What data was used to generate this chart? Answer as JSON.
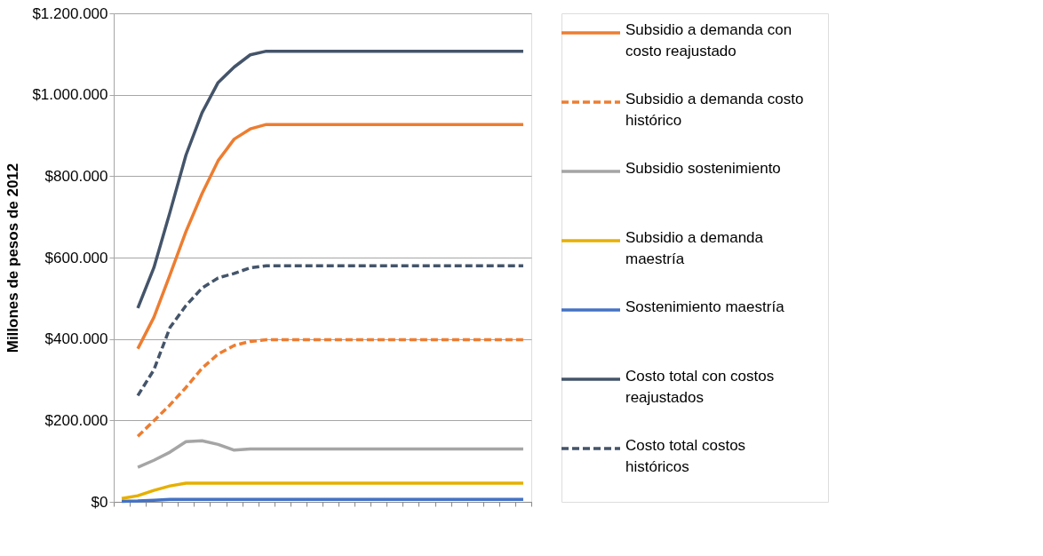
{
  "chart_data": {
    "type": "line",
    "ylabel": "Millones de pesos de 2012",
    "categories": [
      null,
      null,
      null,
      null,
      null,
      null,
      null,
      null,
      null,
      null,
      null,
      null,
      null,
      null,
      null,
      null,
      null,
      null,
      null,
      null,
      null,
      null,
      null,
      null,
      null,
      null
    ],
    "ylim": [
      0,
      1200000
    ],
    "yticks": [
      {
        "value": 0,
        "label": "$0"
      },
      {
        "value": 200000,
        "label": "$200.000"
      },
      {
        "value": 400000,
        "label": "$400.000"
      },
      {
        "value": 600000,
        "label": "$600.000"
      },
      {
        "value": 800000,
        "label": "$800.000"
      },
      {
        "value": 1000000,
        "label": "$1.000.000"
      },
      {
        "value": 1200000,
        "label": "$1.200.000"
      }
    ],
    "grid": "y",
    "legend": "right",
    "tick_labels": "y",
    "marker": "none",
    "series": [
      {
        "name": "Subsidio a demanda con costo reajustado",
        "color": "#ed7d31",
        "line_style": "solid",
        "values": [
          null,
          376000,
          453000,
          557000,
          664000,
          757000,
          838000,
          891000,
          916000,
          927000,
          927000,
          927000,
          927000,
          927000,
          927000,
          927000,
          927000,
          927000,
          927000,
          927000,
          927000,
          927000,
          927000,
          927000,
          927000,
          927000
        ]
      },
      {
        "name": "Subsidio a demanda costo histórico",
        "color": "#ed7d31",
        "line_style": "dashed",
        "values": [
          null,
          161000,
          199000,
          238000,
          281000,
          328000,
          363000,
          384000,
          394000,
          398000,
          398000,
          398000,
          398000,
          398000,
          398000,
          398000,
          398000,
          398000,
          398000,
          398000,
          398000,
          398000,
          398000,
          398000,
          398000,
          398000
        ]
      },
      {
        "name": "Subsidio sostenimiento",
        "color": "#a5a5a5",
        "line_style": "solid",
        "values": [
          null,
          85000,
          102000,
          122000,
          148000,
          150000,
          141000,
          127000,
          130000,
          130000,
          130000,
          130000,
          130000,
          130000,
          130000,
          130000,
          130000,
          130000,
          130000,
          130000,
          130000,
          130000,
          130000,
          130000,
          130000,
          130000
        ]
      },
      {
        "name": "Subsidio a demanda maestría",
        "color": "#e6b000",
        "line_style": "solid",
        "values": [
          8000,
          15000,
          28000,
          39000,
          46000,
          46000,
          46000,
          46000,
          46000,
          46000,
          46000,
          46000,
          46000,
          46000,
          46000,
          46000,
          46000,
          46000,
          46000,
          46000,
          46000,
          46000,
          46000,
          46000,
          46000,
          46000
        ]
      },
      {
        "name": "Sostenimiento maestría",
        "color": "#4472c4",
        "line_style": "solid",
        "values": [
          1000,
          2000,
          4000,
          6000,
          6000,
          6000,
          6000,
          6000,
          6000,
          6000,
          6000,
          6000,
          6000,
          6000,
          6000,
          6000,
          6000,
          6000,
          6000,
          6000,
          6000,
          6000,
          6000,
          6000,
          6000,
          6000
        ]
      },
      {
        "name": "Costo total con costos reajustados",
        "color": "#44546a",
        "line_style": "solid",
        "values": [
          null,
          476000,
          575000,
          711000,
          852000,
          956000,
          1030000,
          1068000,
          1098000,
          1107000,
          1107000,
          1107000,
          1107000,
          1107000,
          1107000,
          1107000,
          1107000,
          1107000,
          1107000,
          1107000,
          1107000,
          1107000,
          1107000,
          1107000,
          1107000,
          1107000
        ]
      },
      {
        "name": "Costo total costos históricos",
        "color": "#44546a",
        "line_style": "dashed",
        "values": [
          null,
          261000,
          324000,
          428000,
          482000,
          525000,
          550000,
          561000,
          575000,
          580000,
          580000,
          580000,
          580000,
          580000,
          580000,
          580000,
          580000,
          580000,
          580000,
          580000,
          580000,
          580000,
          580000,
          580000,
          580000,
          580000
        ]
      }
    ]
  }
}
